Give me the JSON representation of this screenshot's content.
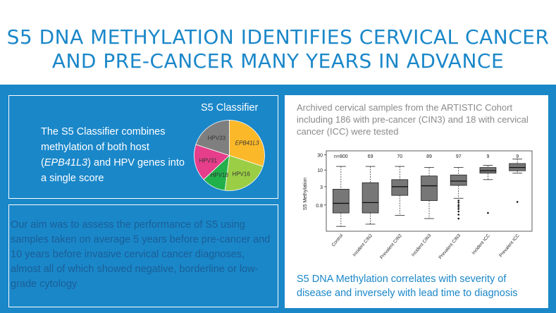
{
  "header": {
    "title_line1": "S5 DNA METHYLATION IDENTIFIES CERVICAL CANCER",
    "title_line2": "AND PRE-CANCER MANY YEARS IN ADVANCE"
  },
  "panel_classifier": {
    "text_before": "The S5 Classifier combines methylation of both host (",
    "text_gene": "EPB41L3",
    "text_after": ") and HPV genes into a single score"
  },
  "panel_aim": {
    "text": "Our aim was to assess the performance of S5 using samples taken on average 5 years before pre-cancer and 10 years before invasive cervical cancer diagnoses, almost all of which showed negative, borderline or low-grade cytology"
  },
  "panel_results": {
    "intro": "Archived cervical samples from the ARTISTIC Cohort including 186 with pre-cancer (CIN3) and 18 with cervical cancer (ICC) were tested",
    "conclusion": "S5 DNA Methylation correlates with severity of disease and inversely with lead time to diagnosis"
  },
  "colors": {
    "brand_blue": "#1a87c9",
    "box_fill": "#777777"
  },
  "chart_data": [
    {
      "type": "pie",
      "title": "S5 Classifier",
      "slices": [
        {
          "label": "EPB41L3",
          "value": 30,
          "color": "#fbb829",
          "italic": true
        },
        {
          "label": "HPV16",
          "value": 22,
          "color": "#9bce45",
          "italic": false
        },
        {
          "label": "HPV18",
          "value": 11,
          "color": "#22b04b",
          "italic": false
        },
        {
          "label": "HPV31",
          "value": 17,
          "color": "#e63e8b",
          "italic": false
        },
        {
          "label": "HPV33",
          "value": 20,
          "color": "#7f7f7f",
          "italic": false
        }
      ]
    },
    {
      "type": "box",
      "ylabel": "S5 Methylation",
      "yscale": "log",
      "ylim": [
        0.12,
        40
      ],
      "yticks": [
        0.8,
        3,
        10,
        30
      ],
      "ytick_labels": [
        "0.8",
        "3",
        "10",
        "30"
      ],
      "categories": [
        "Control",
        "Incident CIN2",
        "Prevalent CIN2",
        "Incident CIN3",
        "Prevalent CIN3",
        "Incident ICC",
        "Prevalent ICC"
      ],
      "n_labels": [
        "n=800",
        "69",
        "70",
        "89",
        "97",
        "9",
        "9"
      ],
      "boxes": [
        {
          "whisker_low": 0.17,
          "q1": 0.45,
          "median": 0.9,
          "q3": 2.5,
          "whisker_high": 13,
          "outliers": []
        },
        {
          "whisker_low": 0.2,
          "q1": 0.45,
          "median": 0.95,
          "q3": 4.0,
          "whisker_high": 13,
          "outliers": []
        },
        {
          "whisker_low": 0.38,
          "q1": 1.6,
          "median": 3.0,
          "q3": 5.0,
          "whisker_high": 13,
          "outliers": []
        },
        {
          "whisker_low": 0.3,
          "q1": 1.1,
          "median": 3.2,
          "q3": 6.5,
          "whisker_high": 12,
          "outliers": []
        },
        {
          "whisker_low": 1.3,
          "q1": 3.3,
          "median": 4.5,
          "q3": 7.0,
          "whisker_high": 12,
          "outliers": [
            0.3,
            0.4,
            0.5,
            0.6,
            0.7,
            0.8,
            0.95,
            1.1
          ]
        },
        {
          "whisker_low": 5.0,
          "q1": 8.0,
          "median": 9.5,
          "q3": 12,
          "whisker_high": 14,
          "outliers": [
            0.45
          ]
        },
        {
          "whisker_low": 8.0,
          "q1": 9.5,
          "median": 12,
          "q3": 16,
          "whisker_high": 22,
          "outliers": [
            1.0
          ]
        }
      ]
    }
  ]
}
